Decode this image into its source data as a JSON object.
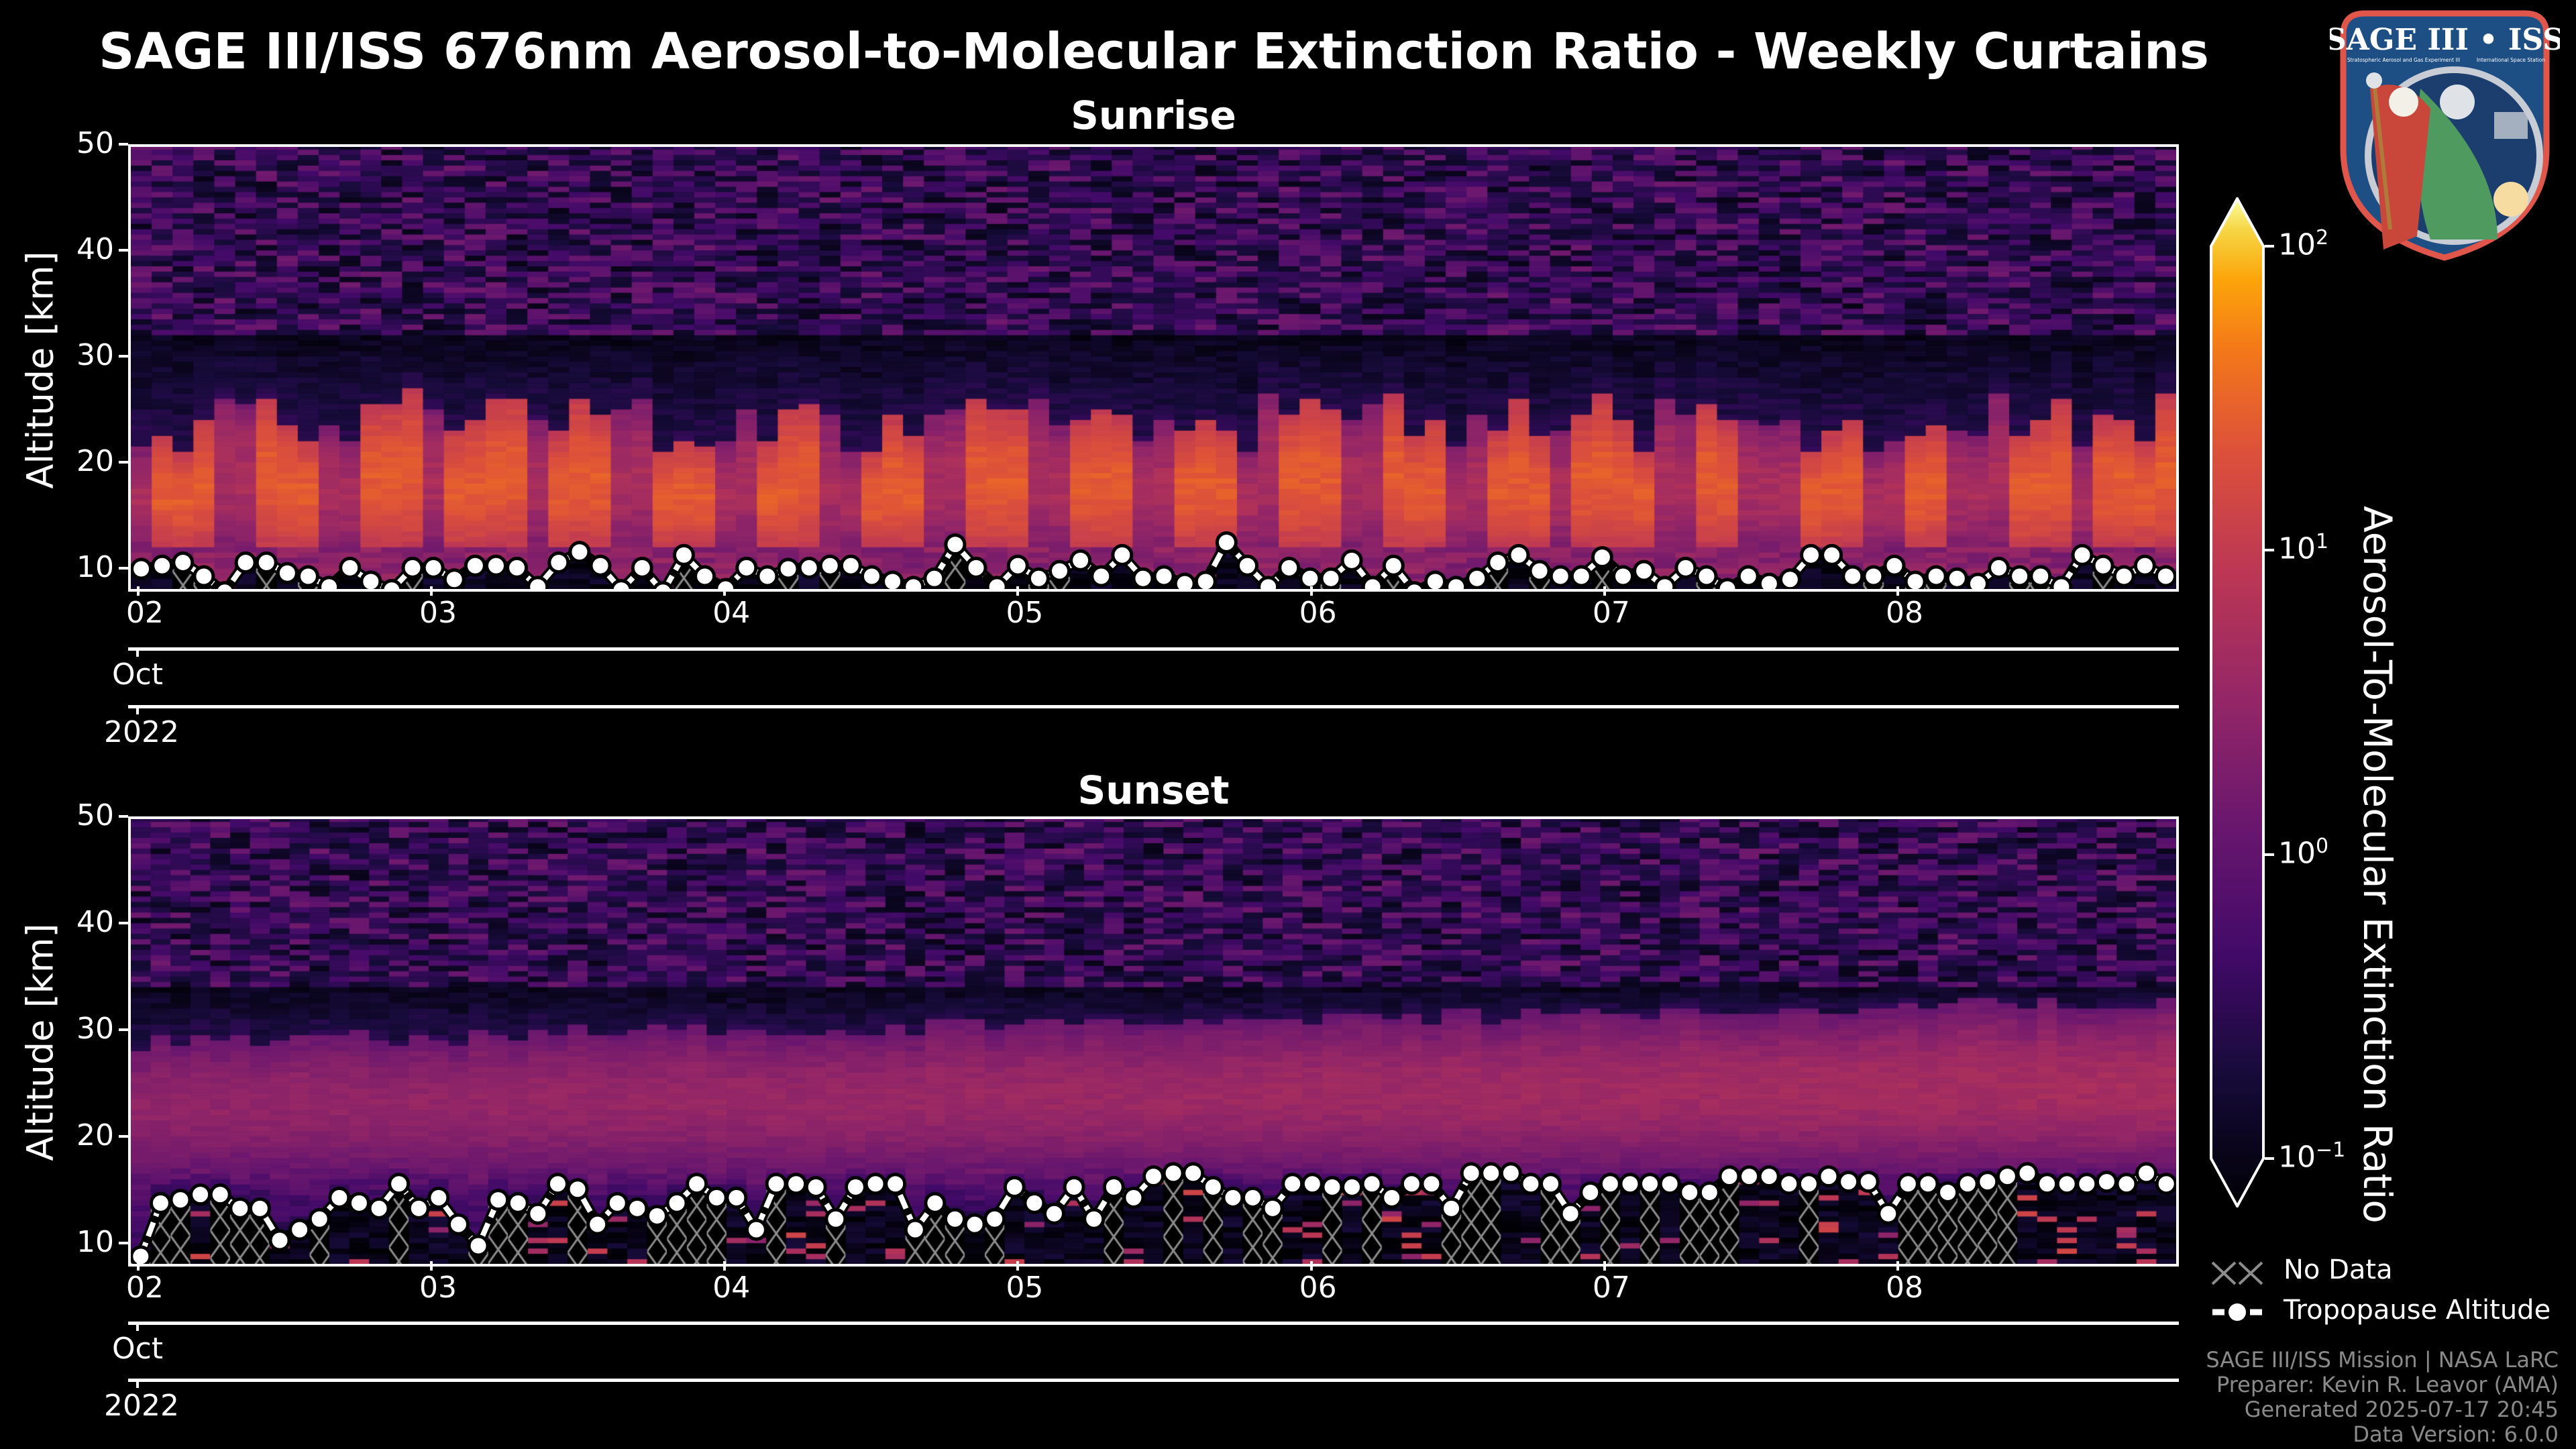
{
  "title": "SAGE III/ISS 676nm Aerosol-to-Molecular Extinction Ratio - Weekly Curtains",
  "logo": {
    "name": "SAGE III • ISS",
    "subtitle_left": "Stratospheric Aerosol and Gas Experiment III",
    "subtitle_right": "International Space Station",
    "ring_text": "BALL • NASA LANGLEY RESEARCH CENTER • TAS-I • ESA"
  },
  "colors": {
    "background": "#000000",
    "axes": "#ffffff",
    "hatch": "#8c8c8c",
    "footer": "#8a8a8a"
  },
  "chart_data": [
    {
      "type": "heatmap",
      "title": "Sunrise",
      "xlabel": "",
      "ylabel": "Altitude [km]",
      "ylim": [
        8.3,
        50
      ],
      "xlim_days_oct2022": [
        1.966,
        8.94
      ],
      "yticks": [
        10,
        20,
        30,
        40,
        50
      ],
      "xticks": [
        {
          "day": 2,
          "label": "02"
        },
        {
          "day": 3,
          "label": "03"
        },
        {
          "day": 4,
          "label": "04"
        },
        {
          "day": 5,
          "label": "05"
        },
        {
          "day": 6,
          "label": "06"
        },
        {
          "day": 7,
          "label": "07"
        },
        {
          "day": 8,
          "label": "08"
        }
      ],
      "month_label": "Oct",
      "year_label": "2022",
      "curtain": {
        "layer_bottom_km": 12,
        "layer_top_km": [
          21,
          27
        ],
        "layer_ratio_range": [
          2,
          30
        ],
        "upper_noise_ratio_range": [
          0.15,
          2
        ],
        "clean_gap_km": [
          27,
          32
        ],
        "clumped": true,
        "seed": 7
      },
      "tropopause_km": [
        10.2,
        10.5,
        10.8,
        9.5,
        8.0,
        10.8,
        10.8,
        9.8,
        9.5,
        8.5,
        10.3,
        9.0,
        8.2,
        10.3,
        10.3,
        9.2,
        10.5,
        10.5,
        10.3,
        8.5,
        10.8,
        11.8,
        10.5,
        8.2,
        10.3,
        8.0,
        11.5,
        9.5,
        8.3,
        10.3,
        9.5,
        10.2,
        10.3,
        10.5,
        10.5,
        9.5,
        9.0,
        8.5,
        9.3,
        12.5,
        10.3,
        8.5,
        10.5,
        9.3,
        10.0,
        11.0,
        9.5,
        11.5,
        9.3,
        9.5,
        8.8,
        9.0,
        12.7,
        10.5,
        8.5,
        10.3,
        9.3,
        9.3,
        11.0,
        8.5,
        10.5,
        8.0,
        9.0,
        8.5,
        9.3,
        10.8,
        11.5,
        10.0,
        9.5,
        9.5,
        11.3,
        9.5,
        10.0,
        8.5,
        10.3,
        9.5,
        8.3,
        9.5,
        8.8,
        9.2,
        11.5,
        11.5,
        9.5,
        9.5,
        10.5,
        9.0,
        9.5,
        9.3,
        8.8,
        10.3,
        9.5,
        9.5,
        8.5,
        11.5,
        10.5,
        9.5,
        10.5,
        9.5
      ]
    },
    {
      "type": "heatmap",
      "title": "Sunset",
      "xlabel": "",
      "ylabel": "Altitude [km]",
      "ylim": [
        8.3,
        50
      ],
      "xlim_days_oct2022": [
        1.966,
        8.94
      ],
      "yticks": [
        10,
        20,
        30,
        40,
        50
      ],
      "xticks": [
        {
          "day": 2,
          "label": "02"
        },
        {
          "day": 3,
          "label": "03"
        },
        {
          "day": 4,
          "label": "04"
        },
        {
          "day": 5,
          "label": "05"
        },
        {
          "day": 6,
          "label": "06"
        },
        {
          "day": 7,
          "label": "07"
        },
        {
          "day": 8,
          "label": "08"
        }
      ],
      "month_label": "Oct",
      "year_label": "2022",
      "curtain": {
        "layer_bottom_km": 17,
        "layer_top_km": [
          28,
          32
        ],
        "layer_ratio_range": [
          1.5,
          6
        ],
        "upper_noise_ratio_range": [
          0.15,
          2
        ],
        "clean_gap_km": [
          30,
          34
        ],
        "clumped": false,
        "seed": 19
      },
      "tropopause_km": [
        9.0,
        14.0,
        14.3,
        14.8,
        14.8,
        13.5,
        13.5,
        10.5,
        11.5,
        12.5,
        14.5,
        14.0,
        13.5,
        15.8,
        13.5,
        14.5,
        12.0,
        10.0,
        14.3,
        14.0,
        13.0,
        15.8,
        15.3,
        12.0,
        14.0,
        13.5,
        12.8,
        14.0,
        15.8,
        14.5,
        14.5,
        11.5,
        15.8,
        15.8,
        15.5,
        12.5,
        15.5,
        15.8,
        15.8,
        11.5,
        14.0,
        12.5,
        12.0,
        12.5,
        15.5,
        14.0,
        13.0,
        15.5,
        12.5,
        15.5,
        14.5,
        16.5,
        16.8,
        16.8,
        15.5,
        14.5,
        14.5,
        13.5,
        15.8,
        15.8,
        15.5,
        15.5,
        15.8,
        14.5,
        15.8,
        15.8,
        13.5,
        16.8,
        16.8,
        16.8,
        15.8,
        15.8,
        13.0,
        15.0,
        15.8,
        15.8,
        15.8,
        15.8,
        15.0,
        15.0,
        16.5,
        16.5,
        16.5,
        15.8,
        15.8,
        16.5,
        16.0,
        16.0,
        13.0,
        15.8,
        15.8,
        15.0,
        15.8,
        16.0,
        16.5,
        16.8,
        15.8,
        15.8,
        15.8,
        16.0,
        15.8,
        16.8,
        15.8
      ]
    }
  ],
  "colorbar": {
    "label": "Aerosol-To-Molecular Extinction Ratio",
    "scale": "log",
    "range": [
      0.1,
      100
    ],
    "colormap": "inferno",
    "extend": "both",
    "ticks": [
      {
        "value": 100,
        "base": "10",
        "exp": "2"
      },
      {
        "value": 10,
        "base": "10",
        "exp": "1"
      },
      {
        "value": 1,
        "base": "10",
        "exp": "0"
      },
      {
        "value": 0.1,
        "base": "10",
        "exp": "−1"
      }
    ]
  },
  "legend": {
    "no_data": "No Data",
    "tropopause": "Tropopause Altitude"
  },
  "footer": [
    "SAGE III/ISS Mission | NASA LaRC",
    "Preparer: Kevin R. Leavor (AMA)",
    "Generated 2025-07-17 20:45",
    "Data Version: 6.0.0"
  ]
}
